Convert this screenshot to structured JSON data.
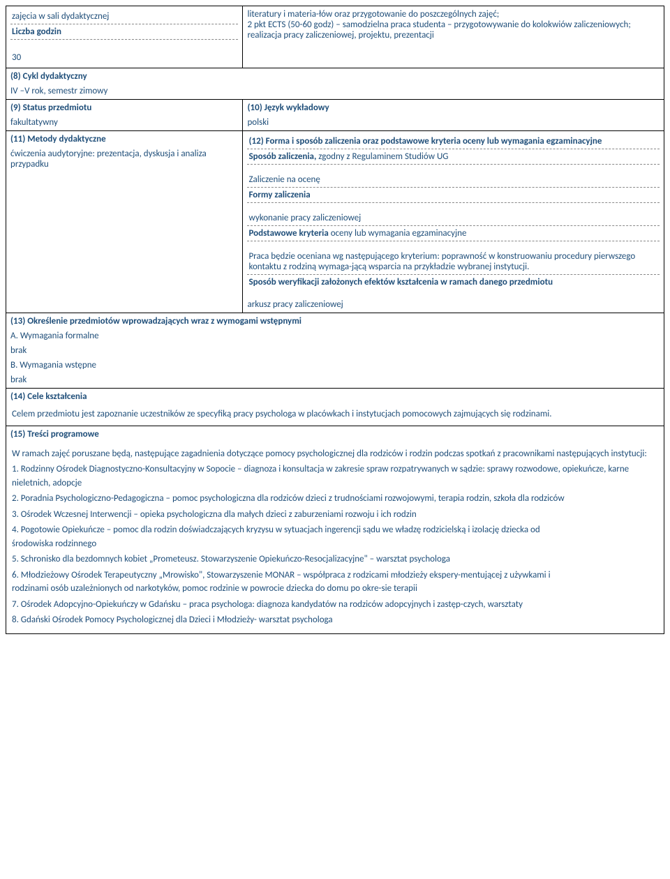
{
  "topLeft": {
    "row1": "zajęcia w sali dydaktycznej",
    "row2_label": "Liczba godzin",
    "row3_value": "30"
  },
  "topRight": {
    "text": "literatury i materia-łów oraz przygotowanie do poszczególnych zajęć;\n2 pkt ECTS (50-60 godz) – samodzielna praca studenta – przygotowywanie do kolokwiów zaliczeniowych; realizacja pracy zaliczeniowej, projektu, prezentacji"
  },
  "s8": {
    "title": "(8) Cykl dydaktyczny",
    "value": "IV –V rok, semestr zimowy"
  },
  "s9": {
    "title": "(9) Status przedmiotu",
    "value": "fakultatywny"
  },
  "s10": {
    "title": "(10) Język wykładowy",
    "value": "polski"
  },
  "s11": {
    "title": "(11) Metody dydaktyczne",
    "value": "ćwiczenia audytoryjne: prezentacja, dyskusja i analiza przypadku"
  },
  "s12": {
    "title": "(12) Forma i sposób zaliczenia oraz podstawowe kryteria oceny lub wymagania egzaminacyjne",
    "b1_label": "Sposób zaliczenia,",
    "b1_text": " zgodny z Regulaminem Studiów UG",
    "b2": "Zaliczenie na ocenę",
    "b3_label": "Formy zaliczenia",
    "b4": "wykonanie pracy zaliczeniowej",
    "b5_label": "Podstawowe kryteria",
    "b5_text": " oceny lub wymagania egzaminacyjne",
    "b6": "Praca będzie oceniana wg następującego kryterium: poprawność w konstruowaniu procedury pierwszego kontaktu z rodziną wymaga-jącą wsparcia na przykładzie wybranej instytucji.",
    "b7_label": "Sposób weryfikacji założonych efektów kształcenia w ramach danego przedmiotu",
    "b8": "arkusz pracy zaliczeniowej"
  },
  "s13": {
    "title": "(13) Określenie przedmiotów wprowadzających wraz z wymogami wstępnymi",
    "a_label": "A. Wymagania formalne",
    "a_value": "brak",
    "b_label": "B. Wymagania wstępne",
    "b_value": "brak"
  },
  "s14": {
    "title": "(14) Cele kształcenia",
    "text": "Celem przedmiotu jest zapoznanie uczestników ze specyfiką pracy psychologa w placówkach i instytucjach pomocowych zajmujących się rodzinami."
  },
  "s15": {
    "title": "(15) Treści programowe",
    "intro": "W ramach zajęć poruszane będą, następujące zagadnienia dotyczące pomocy psychologicznej dla rodziców i rodzin podczas spotkań z pracownikami następujących instytucji:",
    "items": [
      "1. Rodzinny Ośrodek Diagnostyczno-Konsultacyjny w Sopocie – diagnoza i konsultacja w zakresie spraw rozpatrywanych w sądzie: sprawy rozwodowe, opiekuńcze, karne nieletnich, adopcje",
      "2. Poradnia Psychologiczno-Pedagogiczna – pomoc psychologiczna dla rodziców dzieci z trudnościami rozwojowymi, terapia rodzin, szkoła dla rodziców",
      "3. Ośrodek Wczesnej Interwencji – opieka psychologiczna dla małych dzieci z zaburzeniami rozwoju i ich rodzin",
      "4. Pogotowie Opiekuńcze – pomoc dla rodzin doświadczających kryzysu w sytuacjach ingerencji sądu we władzę rodzicielską i izolację dziecka od\nśrodowiska rodzinnego",
      "5. Schronisko dla bezdomnych kobiet „Prometeusz. Stowarzyszenie Opiekuńczo-Resocjalizacyjne\" – warsztat psychologa",
      "6. Młodzieżowy Ośrodek Terapeutyczny „Mrowisko\", Stowarzyszenie MONAR – współpraca z rodzicami młodzieży ekspery-mentującej z używkami i\nrodzinami osób uzależnionych od narkotyków, pomoc rodzinie w powrocie dziecka do domu po okre-sie terapii",
      "7. Ośrodek Adopcyjno-Opiekuńczy w Gdańsku – praca psychologa: diagnoza kandydatów na rodziców adopcyjnych i zastęp-czych, warsztaty",
      "8. Gdański Ośrodek Pomocy Psychologicznej dla Dzieci i Młodzieży- warsztat psychologa"
    ]
  }
}
